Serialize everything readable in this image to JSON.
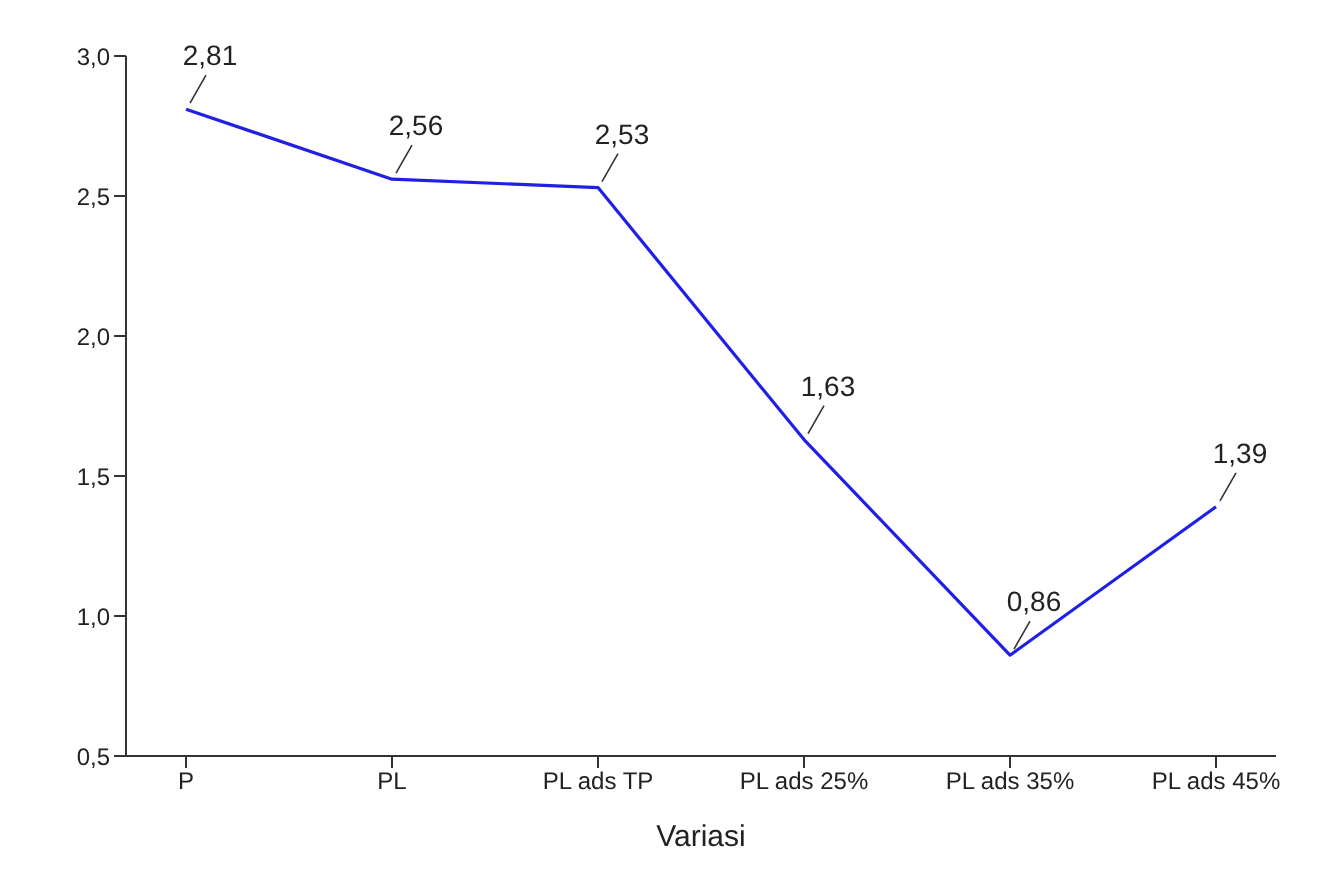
{
  "chart_data": {
    "type": "line",
    "xlabel": "Variasi",
    "categories": [
      "P",
      "PL",
      "PL ads TP",
      "PL ads 25%",
      "PL ads 35%",
      "PL ads 45%"
    ],
    "series": [
      {
        "color": "#1f1fe6",
        "values": [
          2.81,
          2.56,
          2.53,
          1.63,
          0.86,
          1.39
        ],
        "value_labels": [
          "2,81",
          "2,56",
          "2,53",
          "1,63",
          "0,86",
          "1,39"
        ]
      }
    ],
    "ylim": [
      0.5,
      3.0
    ],
    "yticks": [
      {
        "value": 0.5,
        "label": "0,5"
      },
      {
        "value": 1.0,
        "label": "1,0"
      },
      {
        "value": 1.5,
        "label": "1,5"
      },
      {
        "value": 2.0,
        "label": "2,0"
      },
      {
        "value": 2.5,
        "label": "2,5"
      },
      {
        "value": 3.0,
        "label": "3,0"
      }
    ],
    "grid": false,
    "legend": false,
    "marker": "none",
    "line_style": "solid"
  }
}
